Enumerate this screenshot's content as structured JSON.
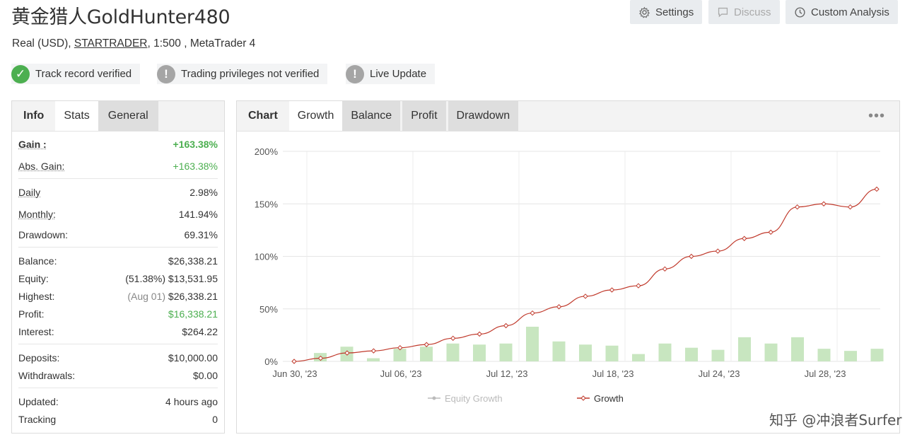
{
  "header": {
    "title": "黄金猎人GoldHunter480",
    "subtitle_pre": "Real (USD), ",
    "subtitle_link": "STARTRADER",
    "subtitle_post": ", 1:500 , MetaTrader 4",
    "buttons": {
      "settings": "Settings",
      "discuss": "Discuss",
      "custom": "Custom Analysis"
    }
  },
  "badges": [
    {
      "label": "Track record verified",
      "icon": "check-icon",
      "color": "#4caf50"
    },
    {
      "label": "Trading privileges not verified",
      "icon": "exclamation-icon",
      "color": "#a5a5a5"
    },
    {
      "label": "Live Update",
      "icon": "exclamation-icon",
      "color": "#a5a5a5"
    }
  ],
  "left_tabs": {
    "info": "Info",
    "stats": "Stats",
    "general": "General"
  },
  "stats": {
    "gain": {
      "k": "Gain :",
      "v": "+163.38%"
    },
    "abs_gain": {
      "k": "Abs. Gain:",
      "v": "+163.38%"
    },
    "daily": {
      "k": "Daily",
      "v": "2.98%"
    },
    "monthly": {
      "k": "Monthly:",
      "v": "141.94%"
    },
    "drawdown": {
      "k": "Drawdown:",
      "v": "69.31%"
    },
    "balance": {
      "k": "Balance:",
      "v": "$26,338.21"
    },
    "equity": {
      "k": "Equity:",
      "muted": "(51.38%)",
      "v": "$13,531.95"
    },
    "highest": {
      "k": "Highest:",
      "muted": "(Aug 01)",
      "v": "$26,338.21"
    },
    "profit": {
      "k": "Profit:",
      "v": "$16,338.21"
    },
    "interest": {
      "k": "Interest:",
      "v": "$264.22"
    },
    "deposits": {
      "k": "Deposits:",
      "v": "$10,000.00"
    },
    "withdrawals": {
      "k": "Withdrawals:",
      "v": "$0.00"
    },
    "updated": {
      "k": "Updated:",
      "v": "4 hours ago"
    },
    "tracking": {
      "k": "Tracking",
      "v": "0"
    }
  },
  "right_tabs": {
    "chart": "Chart",
    "growth": "Growth",
    "balance": "Balance",
    "profit": "Profit",
    "drawdown": "Drawdown",
    "more": "•••"
  },
  "colors": {
    "growth": "#c0392b",
    "bars": "#c8e6c0",
    "equity": "#bbbbbb",
    "green": "#4caf50"
  },
  "chart_data": {
    "type": "line",
    "ylim": [
      0,
      200
    ],
    "y_ticks": [
      "0%",
      "50%",
      "100%",
      "150%",
      "200%"
    ],
    "x_ticks": [
      "Jun 30, '23",
      "Jul 06, '23",
      "Jul 12, '23",
      "Jul 18, '23",
      "Jul 24, '23",
      "Jul 28, '23"
    ],
    "legend": [
      "Equity Growth",
      "Growth"
    ],
    "series": [
      {
        "name": "Growth",
        "type": "line",
        "values": [
          0,
          3,
          8,
          10,
          13,
          16,
          22,
          26,
          34,
          46,
          52,
          62,
          68,
          72,
          88,
          100,
          105,
          117,
          123,
          147,
          150,
          147,
          164
        ]
      },
      {
        "name": "bars",
        "type": "bar",
        "values": [
          8,
          14,
          3,
          12,
          14,
          17,
          16,
          17,
          33,
          19,
          16,
          15,
          7,
          17,
          13,
          11,
          23,
          17,
          23,
          12,
          10,
          12
        ]
      }
    ]
  },
  "watermark": "知乎 @冲浪者Surfer"
}
